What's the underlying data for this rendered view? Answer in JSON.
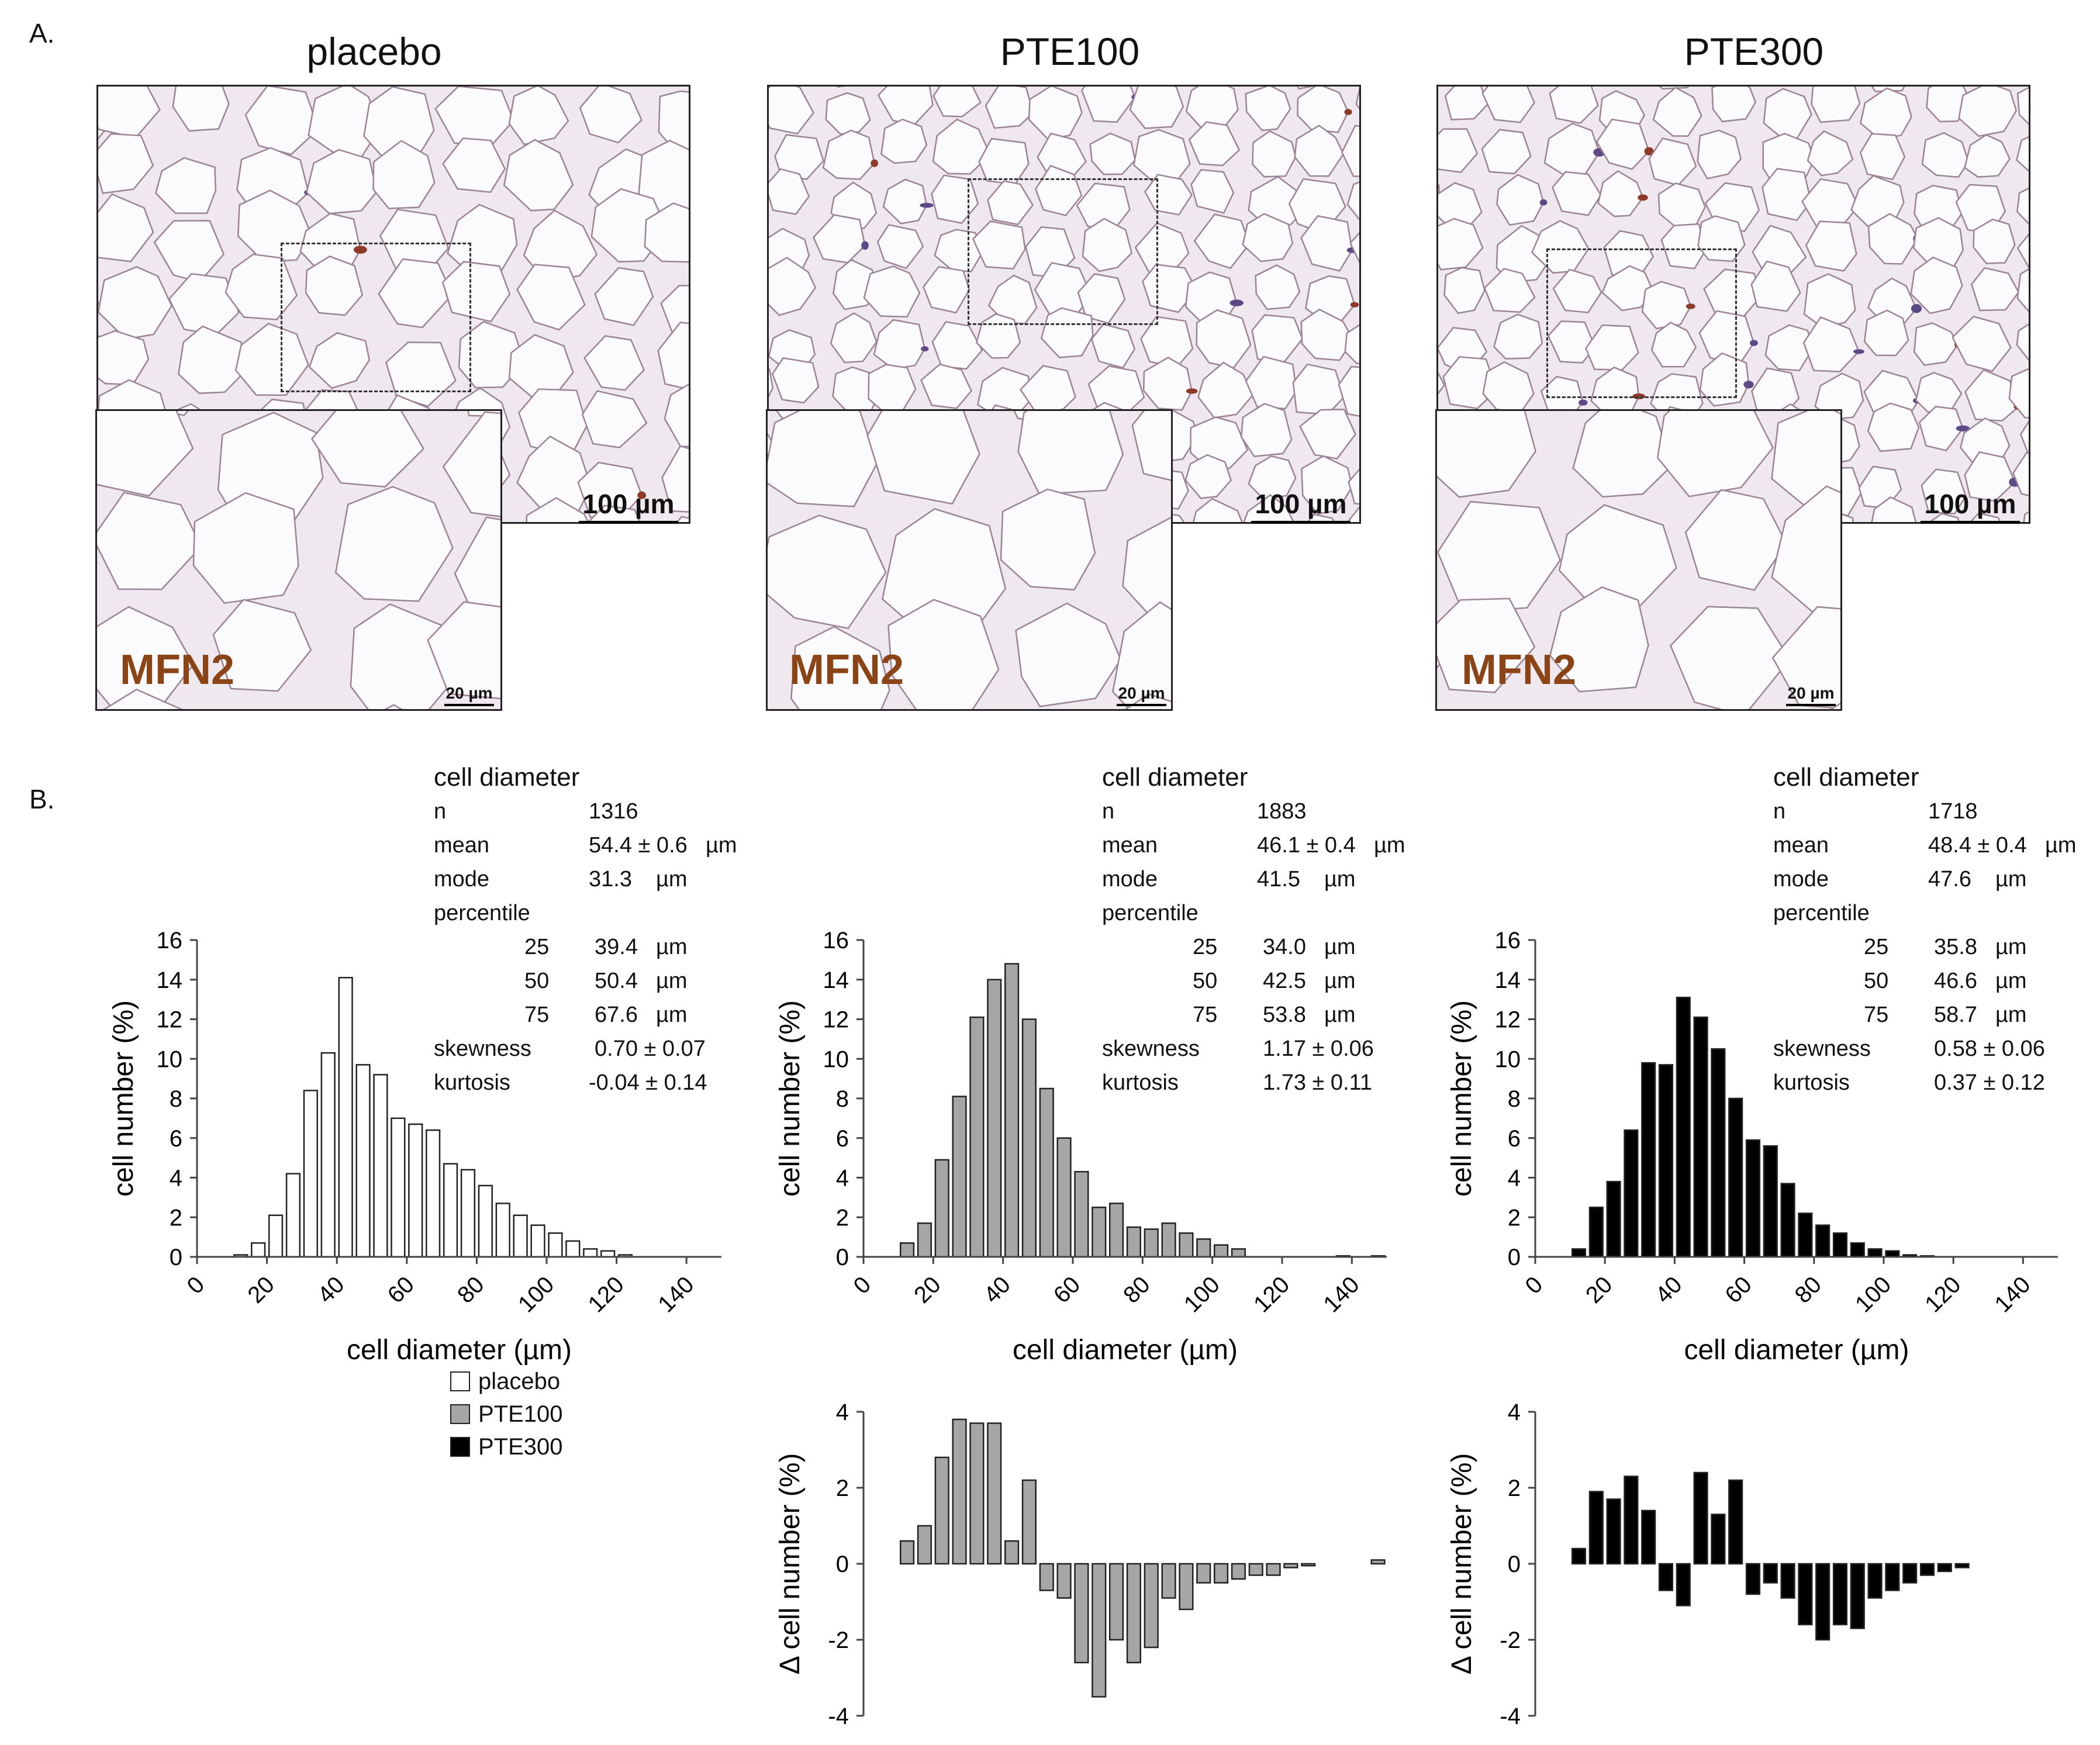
{
  "panel_labels": {
    "a": "A.",
    "b": "B."
  },
  "micrographs": [
    {
      "title": "placebo",
      "scale_main": "100 µm",
      "scale_inset": "20 µm",
      "stain": "MFN2"
    },
    {
      "title": "PTE100",
      "scale_main": "100 µm",
      "scale_inset": "20 µm",
      "stain": "MFN2"
    },
    {
      "title": "PTE300",
      "scale_main": "100 µm",
      "scale_inset": "20 µm",
      "stain": "MFN2"
    }
  ],
  "stats": [
    {
      "header": "cell diameter",
      "n_label": "n",
      "n": "1316",
      "mean_label": "mean",
      "mean": "54.4 ±  0.6",
      "mean_unit": "µm",
      "mode_label": "mode",
      "mode": "31.3",
      "mode_unit": "µm",
      "percentile_label": "percentile",
      "p25_label": "25",
      "p25": "39.4",
      "p25_unit": "µm",
      "p50_label": "50",
      "p50": "50.4",
      "p50_unit": "µm",
      "p75_label": "75",
      "p75": "67.6",
      "p75_unit": "µm",
      "skew_label": "skewness",
      "skew": "0.70 ±  0.07",
      "kurt_label": "kurtosis",
      "kurt": "-0.04 ±  0.14"
    },
    {
      "header": "cell diameter",
      "n_label": "n",
      "n": "1883",
      "mean_label": "mean",
      "mean": "46.1 ±  0.4",
      "mean_unit": "µm",
      "mode_label": "mode",
      "mode": "41.5",
      "mode_unit": "µm",
      "percentile_label": "percentile",
      "p25_label": "25",
      "p25": "34.0",
      "p25_unit": "µm",
      "p50_label": "50",
      "p50": "42.5",
      "p50_unit": "µm",
      "p75_label": "75",
      "p75": "53.8",
      "p75_unit": "µm",
      "skew_label": "skewness",
      "skew": "1.17 ±  0.06",
      "kurt_label": "kurtosis",
      "kurt": "1.73 ±  0.11"
    },
    {
      "header": "cell diameter",
      "n_label": "n",
      "n": "1718",
      "mean_label": "mean",
      "mean": "48.4 ±  0.4",
      "mean_unit": "µm",
      "mode_label": "mode",
      "mode": "47.6",
      "mode_unit": "µm",
      "percentile_label": "percentile",
      "p25_label": "25",
      "p25": "35.8",
      "p25_unit": "µm",
      "p50_label": "50",
      "p50": "46.6",
      "p50_unit": "µm",
      "p75_label": "75",
      "p75": "58.7",
      "p75_unit": "µm",
      "skew_label": "skewness",
      "skew": "0.58 ±  0.06",
      "kurt_label": "kurtosis",
      "kurt": "0.37 ±  0.12"
    }
  ],
  "legend": [
    {
      "label": "placebo",
      "color": "#ffffff"
    },
    {
      "label": "PTE100",
      "color": "#a6a6a6"
    },
    {
      "label": "PTE300",
      "color": "#000000"
    }
  ],
  "chart_data": [
    {
      "id": "hist_placebo",
      "type": "bar",
      "name": "placebo",
      "xlabel": "cell diameter (µm)",
      "ylabel": "cell number (%)",
      "xlim": [
        0,
        150
      ],
      "ylim": [
        0,
        16
      ],
      "xticks": [
        0,
        20,
        40,
        60,
        80,
        100,
        120,
        140
      ],
      "yticks": [
        0,
        2,
        4,
        6,
        8,
        10,
        12,
        14,
        16
      ],
      "bin_width": 5,
      "bin_start": 12.5,
      "fill": "#ffffff",
      "values": [
        0.1,
        0.7,
        2.1,
        4.2,
        8.4,
        10.3,
        14.1,
        9.7,
        9.2,
        7.0,
        6.7,
        6.4,
        4.7,
        4.4,
        3.6,
        2.7,
        2.1,
        1.6,
        1.2,
        0.8,
        0.4,
        0.3,
        0.1
      ]
    },
    {
      "id": "hist_pte100",
      "type": "bar",
      "name": "PTE100",
      "xlabel": "cell diameter (µm)",
      "ylabel": "cell number (%)",
      "xlim": [
        0,
        150
      ],
      "ylim": [
        0,
        16
      ],
      "xticks": [
        0,
        20,
        40,
        60,
        80,
        100,
        120,
        140
      ],
      "yticks": [
        0,
        2,
        4,
        6,
        8,
        10,
        12,
        14,
        16
      ],
      "bin_width": 5,
      "bin_start": 12.5,
      "fill": "#a6a6a6",
      "values": [
        0.7,
        1.7,
        4.9,
        8.1,
        12.1,
        14.0,
        14.8,
        12.0,
        8.5,
        6.0,
        4.3,
        2.5,
        2.7,
        1.5,
        1.4,
        1.7,
        1.2,
        0.9,
        0.6,
        0.4,
        0.0,
        0.0,
        0.0,
        0.0,
        0.0,
        0.05,
        0.0,
        0.05
      ]
    },
    {
      "id": "hist_pte300",
      "type": "bar",
      "name": "PTE300",
      "xlabel": "cell diameter (µm)",
      "ylabel": "cell number (%)",
      "xlim": [
        0,
        150
      ],
      "ylim": [
        0,
        16
      ],
      "xticks": [
        0,
        20,
        40,
        60,
        80,
        100,
        120,
        140
      ],
      "yticks": [
        0,
        2,
        4,
        6,
        8,
        10,
        12,
        14,
        16
      ],
      "bin_width": 5,
      "bin_start": 12.5,
      "fill": "#000000",
      "values": [
        0.4,
        2.5,
        3.8,
        6.4,
        9.8,
        9.7,
        13.1,
        12.1,
        10.5,
        8.0,
        5.9,
        5.6,
        3.7,
        2.2,
        1.6,
        1.2,
        0.7,
        0.4,
        0.3,
        0.1,
        0.05
      ]
    },
    {
      "id": "delta_pte100",
      "type": "bar",
      "name": "PTE100 − placebo",
      "ylabel": "Δ cell number (%)",
      "ylim": [
        -4,
        4
      ],
      "yticks": [
        -4,
        -2,
        0,
        2,
        4
      ],
      "bin_start": 12.5,
      "bin_width": 5,
      "fill": "#a6a6a6",
      "values": [
        0.6,
        1.0,
        2.8,
        3.8,
        3.7,
        3.7,
        0.6,
        2.2,
        -0.7,
        -0.9,
        -2.6,
        -3.5,
        -2.0,
        -2.6,
        -2.2,
        -0.9,
        -1.2,
        -0.5,
        -0.5,
        -0.4,
        -0.3,
        -0.3,
        -0.1,
        -0.05,
        0.0,
        0.0,
        0.0,
        0.1
      ]
    },
    {
      "id": "delta_pte300",
      "type": "bar",
      "name": "PTE300 − placebo",
      "ylabel": "Δ cell number (%)",
      "ylim": [
        -4,
        4
      ],
      "yticks": [
        -4,
        -2,
        0,
        2,
        4
      ],
      "bin_start": 12.5,
      "bin_width": 5,
      "fill": "#000000",
      "values": [
        0.4,
        1.9,
        1.7,
        2.3,
        1.4,
        -0.7,
        -1.1,
        2.4,
        1.3,
        2.2,
        -0.8,
        -0.5,
        -0.9,
        -1.6,
        -2.0,
        -1.6,
        -1.7,
        -0.9,
        -0.7,
        -0.5,
        -0.3,
        -0.2,
        -0.1
      ]
    }
  ]
}
